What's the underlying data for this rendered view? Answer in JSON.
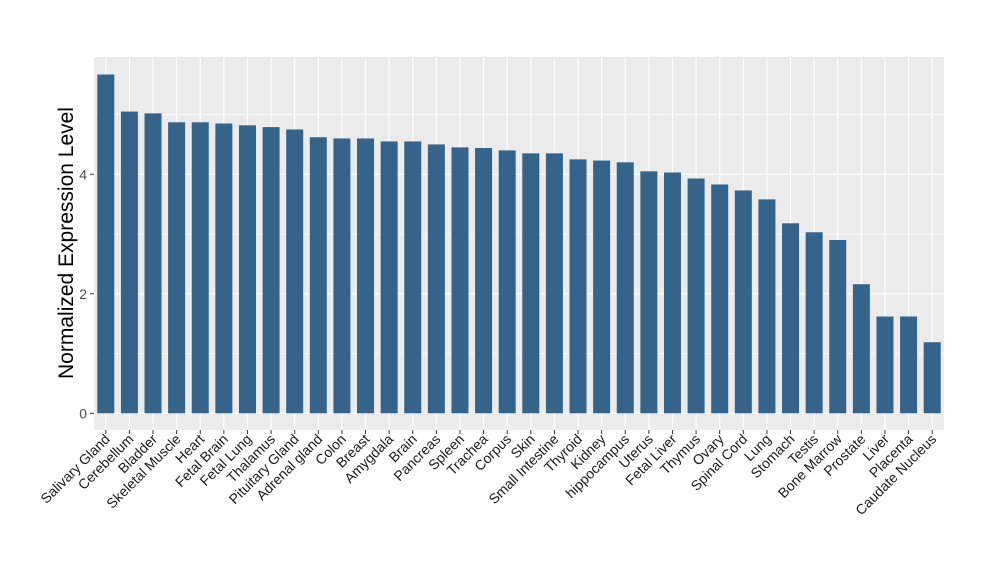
{
  "chart_data": {
    "type": "bar",
    "title": "",
    "xlabel": "",
    "ylabel": "Normalized Expression Level",
    "ylim": [
      -0.3,
      5.95
    ],
    "yticks": [
      0,
      2,
      4
    ],
    "grid": true,
    "bar_color": "#356389",
    "panel_color": "#EBEBEB",
    "categories": [
      "Salivary Gland",
      "Cerebellum",
      "Bladder",
      "Skeletal Muscle",
      "Heart",
      "Fetal Brain",
      "Fetal Lung",
      "Thalamus",
      "Pituitary Gland",
      "Adrenal gland",
      "Colon",
      "Breast",
      "Amygdala",
      "Brain",
      "Pancreas",
      "Spleen",
      "Trachea",
      "Corpus",
      "Skin",
      "Small Intestine",
      "Thyroid",
      "Kidney",
      "hippocampus",
      "Uterus",
      "Fetal Liver",
      "Thymus",
      "Ovary",
      "Spinal Cord",
      "Lung",
      "Stomach",
      "Testis",
      "Bone Marrow",
      "Prostate",
      "Liver",
      "Placenta",
      "Caudate Nucleus"
    ],
    "values": [
      5.67,
      5.05,
      5.02,
      4.87,
      4.87,
      4.85,
      4.82,
      4.79,
      4.75,
      4.62,
      4.6,
      4.6,
      4.55,
      4.55,
      4.5,
      4.45,
      4.44,
      4.4,
      4.35,
      4.35,
      4.25,
      4.23,
      4.2,
      4.05,
      4.03,
      3.93,
      3.83,
      3.73,
      3.58,
      3.18,
      3.03,
      2.9,
      2.16,
      1.62,
      1.62,
      1.19
    ]
  }
}
